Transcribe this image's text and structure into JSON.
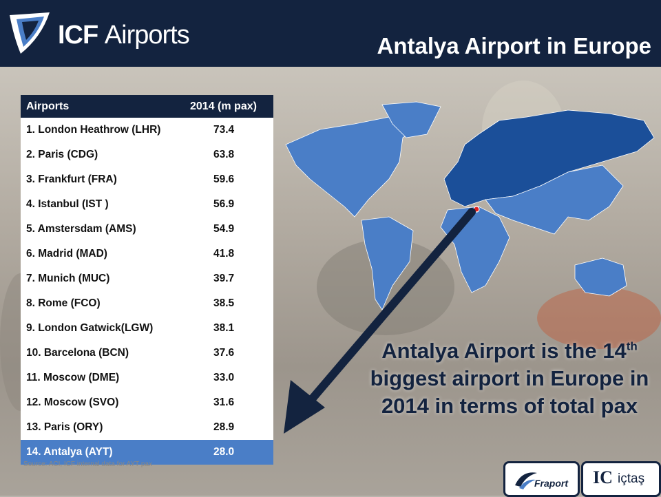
{
  "header": {
    "logo_text_bold": "ICF",
    "logo_text_rest": "Airports",
    "title": "Antalya Airport in Europe"
  },
  "table": {
    "col_airports": "Airports",
    "col_value": "2014 (m pax)",
    "rows": [
      {
        "name": "1. London Heathrow (LHR)",
        "value": "73.4"
      },
      {
        "name": "2. Paris (CDG)",
        "value": "63.8"
      },
      {
        "name": "3. Frankfurt (FRA)",
        "value": "59.6"
      },
      {
        "name": "4. Istanbul (IST )",
        "value": "56.9"
      },
      {
        "name": "5. Amstersdam (AMS)",
        "value": "54.9"
      },
      {
        "name": "6. Madrid (MAD)",
        "value": "41.8"
      },
      {
        "name": "7. Munich (MUC)",
        "value": "39.7"
      },
      {
        "name": "8. Rome (FCO)",
        "value": "38.5"
      },
      {
        "name": "9. London Gatwick(LGW)",
        "value": "38.1"
      },
      {
        "name": "10. Barcelona (BCN)",
        "value": "37.6"
      },
      {
        "name": "11. Moscow (DME)",
        "value": "33.0"
      },
      {
        "name": "12. Moscow (SVO)",
        "value": "31.6"
      },
      {
        "name": "13. Paris (ORY)",
        "value": "28.9"
      },
      {
        "name": "14. Antalya (AYT)",
        "value": "28.0"
      }
    ],
    "highlight_color": "#4a7ec7"
  },
  "callout": {
    "line1_pre": "Antalya Airport is the 14",
    "line1_sup": "th",
    "line2": "biggest airport in Europe in",
    "line3": "2014 in terms of total pax"
  },
  "source": "Source: ACI, ICF internal data for AYT pax",
  "partners": {
    "fraport": "Fraport",
    "ictas_ic": "IC",
    "ictas_name": "içtaş"
  },
  "colors": {
    "navy": "#13233f",
    "europe_blue": "#1b4f99",
    "world_blue": "#4a7ec7"
  }
}
